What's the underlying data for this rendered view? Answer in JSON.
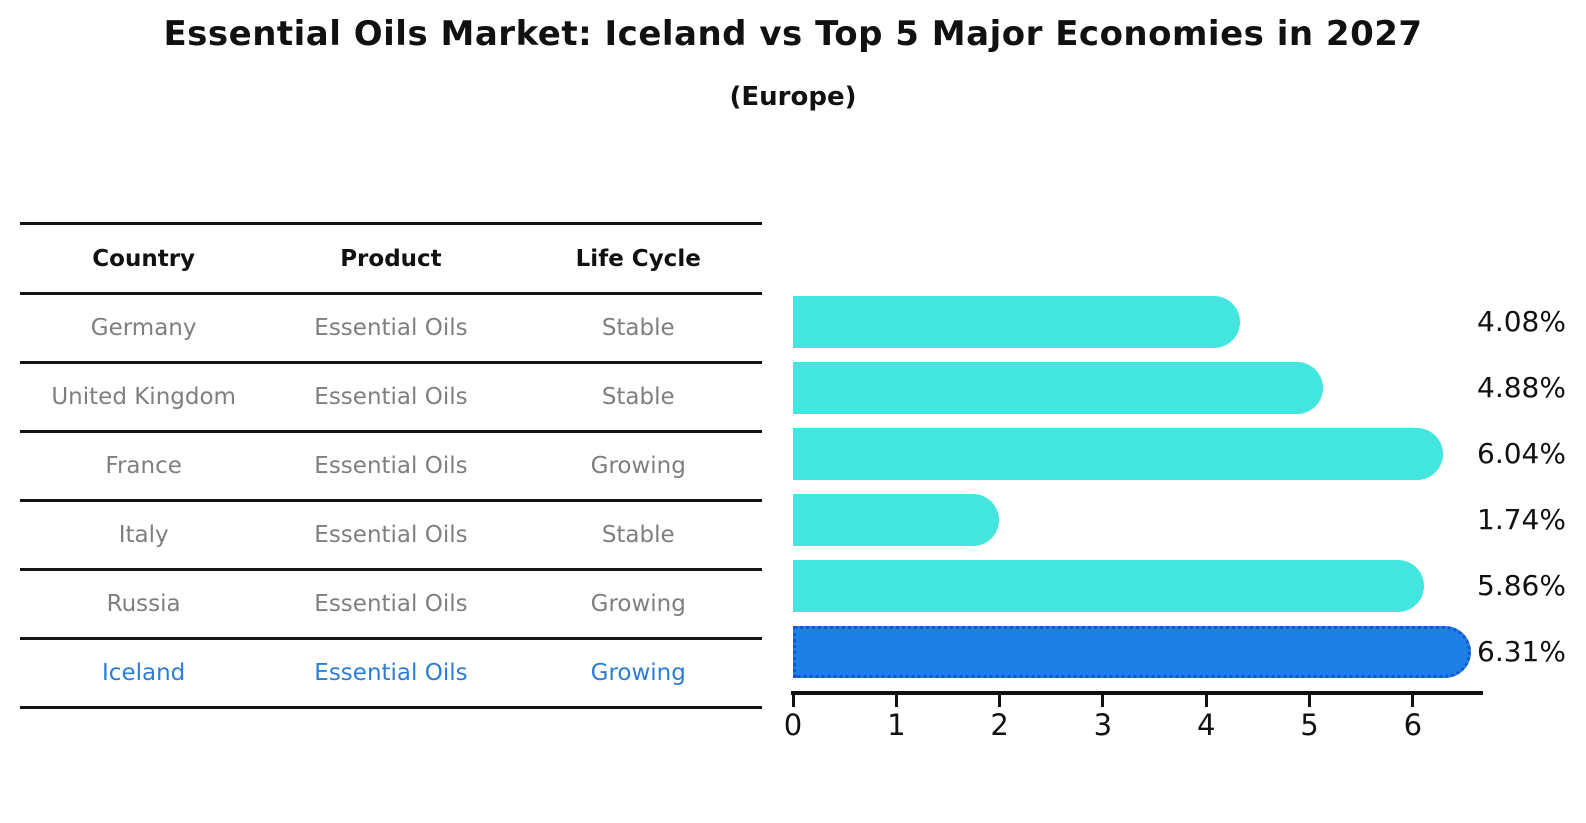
{
  "title": "Essential Oils Market: Iceland vs Top 5 Major Economies in 2027",
  "subtitle": "(Europe)",
  "table": {
    "headers": [
      "Country",
      "Product",
      "Life Cycle"
    ],
    "rows": [
      {
        "country": "Germany",
        "product": "Essential Oils",
        "life_cycle": "Stable",
        "highlighted": false
      },
      {
        "country": "United Kingdom",
        "product": "Essential Oils",
        "life_cycle": "Stable",
        "highlighted": false
      },
      {
        "country": "France",
        "product": "Essential Oils",
        "life_cycle": "Growing",
        "highlighted": false
      },
      {
        "country": "Italy",
        "product": "Essential Oils",
        "life_cycle": "Stable",
        "highlighted": false
      },
      {
        "country": "Russia",
        "product": "Essential Oils",
        "life_cycle": "Growing",
        "highlighted": false
      },
      {
        "country": "Iceland",
        "product": "Essential Oils",
        "life_cycle": "Growing",
        "highlighted": true
      }
    ]
  },
  "chart_data": {
    "type": "bar",
    "orientation": "horizontal",
    "title": "Essential Oils Market: Iceland vs Top 5 Major Economies in 2027 (Europe)",
    "categories": [
      "Germany",
      "United Kingdom",
      "France",
      "Italy",
      "Russia",
      "Iceland"
    ],
    "values": [
      4.08,
      4.88,
      6.04,
      1.74,
      5.86,
      6.31
    ],
    "labels": [
      "4.08%",
      "4.88%",
      "6.04%",
      "1.74%",
      "5.86%",
      "6.31%"
    ],
    "x_ticks": [
      0,
      1,
      2,
      3,
      4,
      5,
      6
    ],
    "xlim": [
      0,
      6.66
    ],
    "grid": false,
    "legend": false,
    "highlight_index": 5,
    "value_suffix": "%"
  },
  "colors": {
    "bar": "#43E6DE",
    "highlight_bar": "#1E80E6",
    "highlight_border": "#1456C8",
    "highlight_text": "#2D7DD2",
    "row_text": "#7F7F7F",
    "axis": "#111111"
  }
}
